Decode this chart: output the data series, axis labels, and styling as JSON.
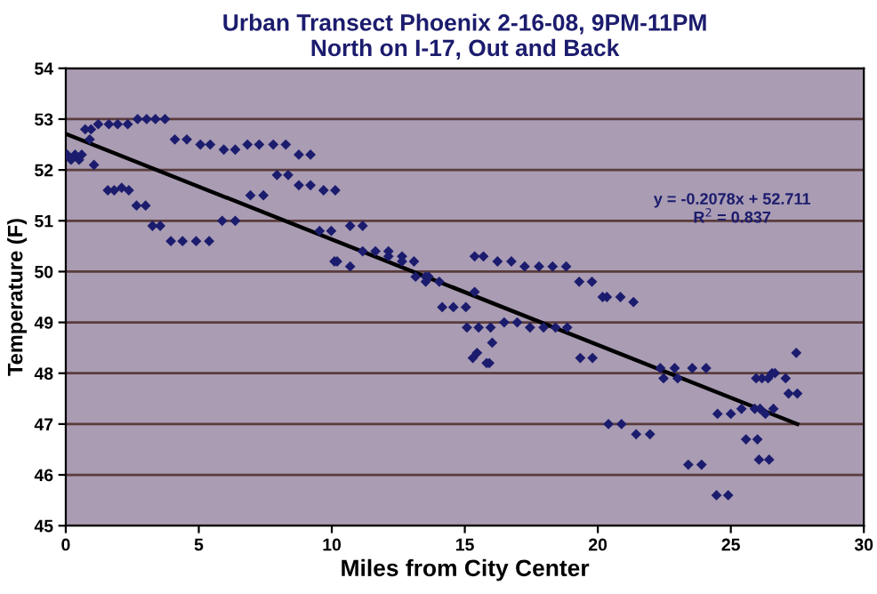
{
  "chart_data": {
    "type": "scatter",
    "title": "Urban Transect Phoenix 2-16-08, 9PM-11PM\nNorth on I-17, Out and Back",
    "xlabel": "Miles from City Center",
    "ylabel": "Temperature (F)",
    "xlim": [
      0,
      30
    ],
    "xticks": [
      0,
      5,
      10,
      15,
      20,
      25,
      30
    ],
    "ylim": [
      45,
      54
    ],
    "yticks": [
      45,
      46,
      47,
      48,
      49,
      50,
      51,
      52,
      53,
      54
    ],
    "grid": "y",
    "legend": false,
    "annotations": [
      "y = -0.2078x + 52.711\nR$^{2}$ = 0.837"
    ],
    "series": [
      {
        "marker": "diamond",
        "color": "#1c1c6e",
        "x": [
          0.05,
          0.2,
          0.35,
          0.5,
          0.6,
          0.73,
          0.95,
          0.9,
          1.22,
          1.62,
          1.95,
          2.33,
          2.7,
          3.04,
          3.37,
          3.73,
          1.06,
          1.58,
          1.82,
          2.1,
          2.37,
          2.66,
          3.0,
          3.26,
          3.55,
          3.95,
          4.39,
          4.9,
          5.39,
          4.1,
          4.55,
          5.06,
          5.43,
          5.94,
          6.37,
          6.83,
          7.27,
          7.8,
          8.27,
          8.76,
          9.2,
          7.94,
          8.36,
          8.76,
          9.2,
          9.69,
          10.13,
          5.88,
          6.37,
          6.94,
          7.43,
          9.54,
          9.98,
          10.2,
          10.69,
          11.16,
          10.1,
          10.69,
          11.16,
          11.64,
          12.13,
          12.13,
          12.64,
          12.64,
          13.09,
          13.15,
          13.53,
          13.53,
          13.64,
          14.04,
          14.15,
          14.57,
          15.04,
          15.37,
          15.37,
          15.7,
          16.23,
          16.75,
          17.25,
          17.79,
          18.3,
          18.81,
          19.3,
          19.78,
          15.08,
          15.52,
          15.97,
          16.03,
          15.3,
          15.46,
          15.82,
          15.92,
          16.48,
          16.97,
          17.45,
          17.96,
          18.41,
          18.85,
          19.34,
          19.8,
          20.18,
          20.34,
          20.85,
          21.34,
          20.4,
          20.89,
          21.44,
          21.96,
          22.35,
          22.89,
          23.55,
          24.07,
          22.47,
          23.0,
          23.4,
          23.9,
          24.5,
          25.0,
          25.4,
          25.9,
          26.1,
          26.3,
          26.6,
          25.57,
          26.0,
          26.06,
          26.44,
          24.46,
          24.9,
          25.95,
          26.17,
          26.4,
          26.55,
          26.66,
          27.06,
          27.46,
          27.17,
          27.5
        ],
        "values": [
          52.3,
          52.2,
          52.3,
          52.2,
          52.3,
          52.8,
          52.8,
          52.6,
          52.9,
          52.9,
          52.9,
          52.9,
          53.0,
          53.0,
          53.0,
          53.0,
          52.1,
          51.6,
          51.6,
          51.65,
          51.6,
          51.3,
          51.3,
          50.9,
          50.9,
          50.6,
          50.6,
          50.6,
          50.6,
          52.6,
          52.6,
          52.5,
          52.5,
          52.4,
          52.4,
          52.5,
          52.5,
          52.5,
          52.5,
          52.3,
          52.3,
          51.9,
          51.9,
          51.7,
          51.7,
          51.6,
          51.6,
          51.0,
          51.0,
          51.5,
          51.5,
          50.8,
          50.8,
          50.2,
          50.9,
          50.9,
          50.2,
          50.1,
          50.4,
          50.4,
          50.4,
          50.3,
          50.3,
          50.2,
          50.2,
          49.9,
          49.9,
          49.8,
          49.9,
          49.8,
          49.3,
          49.3,
          49.3,
          49.6,
          50.3,
          50.3,
          50.2,
          50.2,
          50.1,
          50.1,
          50.1,
          50.1,
          49.8,
          49.8,
          48.9,
          48.9,
          48.9,
          48.6,
          48.3,
          48.4,
          48.2,
          48.2,
          49.0,
          49.0,
          48.9,
          48.9,
          48.9,
          48.9,
          48.3,
          48.3,
          49.5,
          49.5,
          49.5,
          49.4,
          47.0,
          47.0,
          46.8,
          46.8,
          48.1,
          48.1,
          48.1,
          48.1,
          47.9,
          47.9,
          46.2,
          46.2,
          47.2,
          47.2,
          47.3,
          47.3,
          47.3,
          47.2,
          47.3,
          46.7,
          46.7,
          46.3,
          46.3,
          45.6,
          45.6,
          47.9,
          47.9,
          47.9,
          48.0,
          48.0,
          47.9,
          48.4,
          47.6,
          47.6
        ]
      },
      {
        "type": "line",
        "marker": "none",
        "color": "#000000",
        "x": [
          0,
          27.5
        ],
        "values": [
          52.71,
          47.0
        ]
      }
    ]
  }
}
